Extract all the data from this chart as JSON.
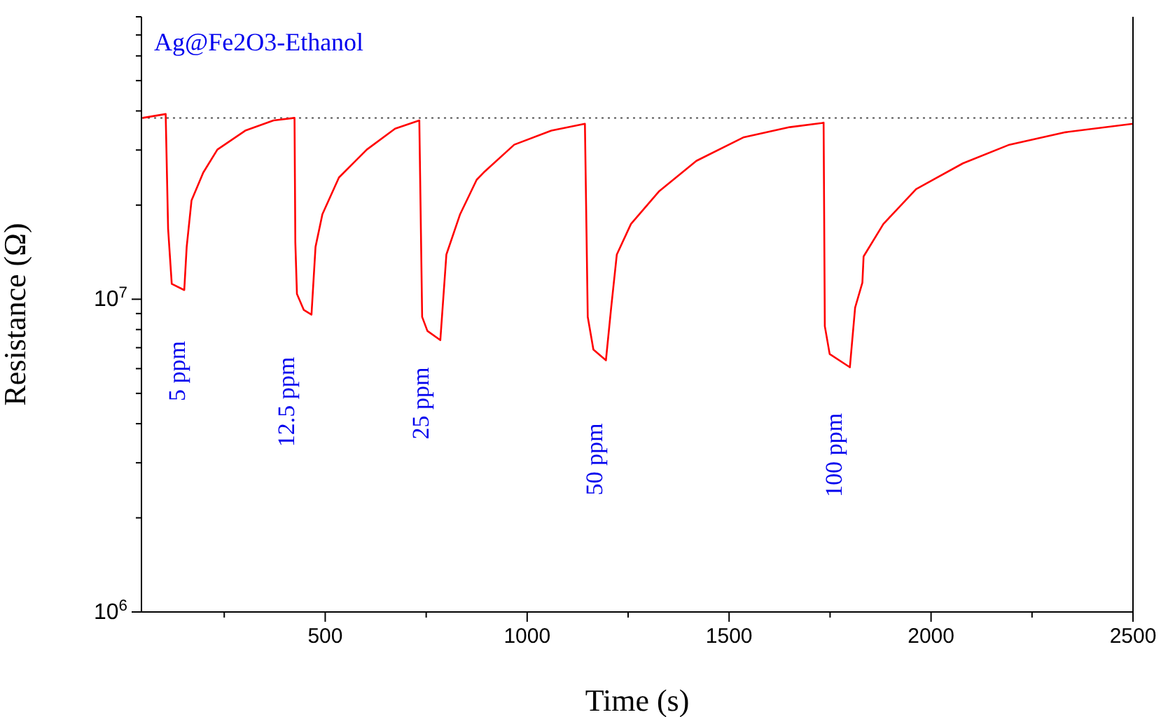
{
  "chart_data": {
    "type": "line",
    "title": "Ag@Fe2O3-Ethanol",
    "xlabel": "Time (s)",
    "ylabel": "Resistance (Ω)",
    "log": "y",
    "xlim": [
      45,
      2500
    ],
    "xticks": [
      {
        "value": 250,
        "label": null
      },
      500,
      {
        "value": 750,
        "label": null
      },
      1000,
      {
        "value": 1250,
        "label": null
      },
      1500,
      {
        "value": 1750,
        "label": null
      },
      2000,
      {
        "value": 2250,
        "label": null
      },
      2500
    ],
    "ylim": [
      1000000,
      80000000
    ],
    "yticks": [
      {
        "value": 1000000,
        "label": "10$^{6}$"
      },
      {
        "value": 2000000,
        "label": null
      },
      {
        "value": 3000000,
        "label": null
      },
      {
        "value": 4000000,
        "label": null
      },
      {
        "value": 5000000,
        "label": null
      },
      {
        "value": 6000000,
        "label": null
      },
      {
        "value": 7000000,
        "label": null
      },
      {
        "value": 8000000,
        "label": null
      },
      {
        "value": 9000000,
        "label": null
      },
      {
        "value": 10000000,
        "label": "10$^{7}$"
      },
      {
        "value": 20000000,
        "label": null
      },
      {
        "value": 30000000,
        "label": null
      },
      {
        "value": 40000000,
        "label": null
      },
      {
        "value": 50000000,
        "label": null
      },
      {
        "value": 60000000,
        "label": null
      },
      {
        "value": 70000000,
        "label": null
      },
      {
        "value": 80000000,
        "label": null
      }
    ],
    "ref_lines": [
      {
        "axis": "y",
        "value": 38000000,
        "color": "#555555",
        "line_style": "dotted"
      }
    ],
    "annotations": [
      "5 ppm",
      "12.5 ppm",
      "25 ppm",
      "50 ppm",
      "100 ppm"
    ],
    "x": [
      48,
      105,
      111,
      120,
      151,
      157,
      169,
      198,
      233,
      302,
      372,
      424,
      426,
      430,
      447,
      466,
      476,
      493,
      534,
      603,
      673,
      733,
      740,
      753,
      785,
      800,
      834,
      875,
      892,
      968,
      1060,
      1143,
      1150,
      1164,
      1195,
      1208,
      1222,
      1257,
      1326,
      1419,
      1535,
      1650,
      1729,
      1734,
      1737,
      1749,
      1799,
      1812,
      1830,
      1833,
      1882,
      1963,
      2079,
      2194,
      2333,
      2500
    ],
    "values": [
      38000000,
      39100000,
      16800000,
      11200000,
      10700000,
      14700000,
      20700000,
      25400000,
      30100000,
      34600000,
      37300000,
      38000000,
      15200000,
      10400000,
      9240000,
      8930000,
      14700000,
      18700000,
      24500000,
      30100000,
      35100000,
      37300000,
      8780000,
      7920000,
      7400000,
      13900000,
      18700000,
      24100000,
      25400000,
      31200000,
      34600000,
      36400000,
      8780000,
      6900000,
      6380000,
      9400000,
      13900000,
      17400000,
      22100000,
      27700000,
      32900000,
      35500000,
      36600000,
      36700000,
      8200000,
      6680000,
      6060000,
      9400000,
      11300000,
      13700000,
      17400000,
      22500000,
      27200000,
      31200000,
      34200000,
      36400000
    ],
    "color": "#ff0000"
  }
}
